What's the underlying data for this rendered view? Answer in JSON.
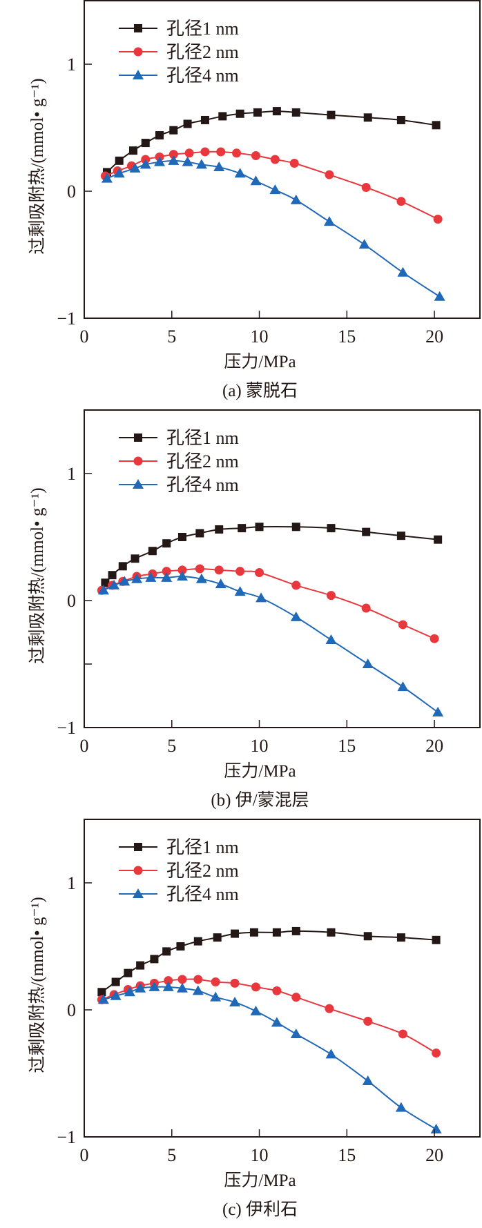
{
  "chart_data": [
    {
      "type": "line",
      "title": "(a) 蒙脱石",
      "xlabel": "压力/MPa",
      "ylabel": "过剩吸附热/(mmol• g⁻¹)",
      "xlim": [
        0,
        22.6
      ],
      "ylim": [
        -1,
        1.5
      ],
      "xticks": [
        0,
        5,
        10,
        15,
        20
      ],
      "yticks": [
        -1,
        0,
        1
      ],
      "ytick_labels": [
        "−1",
        "0",
        "1"
      ],
      "xtick_labels": [
        "0",
        "5",
        "10",
        "15",
        "20"
      ],
      "legend_position": "top-left",
      "series": [
        {
          "name": "孔径1 nm",
          "color": "#231815",
          "marker": "square",
          "x": [
            1.3,
            2.0,
            2.8,
            3.5,
            4.3,
            5.1,
            5.9,
            6.9,
            7.9,
            8.9,
            9.9,
            11.0,
            12.1,
            14.1,
            16.2,
            18.1,
            20.1
          ],
          "y": [
            0.15,
            0.24,
            0.32,
            0.38,
            0.44,
            0.48,
            0.53,
            0.56,
            0.59,
            0.61,
            0.62,
            0.63,
            0.62,
            0.6,
            0.58,
            0.56,
            0.52
          ]
        },
        {
          "name": "孔径2 nm",
          "color": "#e8383d",
          "marker": "circle",
          "x": [
            1.2,
            1.9,
            2.7,
            3.5,
            4.3,
            5.1,
            6.0,
            6.9,
            7.8,
            8.7,
            9.8,
            10.9,
            12.0,
            14.0,
            16.1,
            18.1,
            20.2
          ],
          "y": [
            0.12,
            0.16,
            0.2,
            0.25,
            0.27,
            0.29,
            0.3,
            0.31,
            0.31,
            0.3,
            0.28,
            0.25,
            0.22,
            0.13,
            0.03,
            -0.08,
            -0.22
          ]
        },
        {
          "name": "孔径4 nm",
          "color": "#2068b8",
          "marker": "triangle",
          "x": [
            1.3,
            2.0,
            2.9,
            3.5,
            4.3,
            5.1,
            5.9,
            6.7,
            7.7,
            8.9,
            9.8,
            10.9,
            12.1,
            14.0,
            16.0,
            18.2,
            20.3
          ],
          "y": [
            0.1,
            0.14,
            0.18,
            0.21,
            0.23,
            0.24,
            0.23,
            0.21,
            0.19,
            0.14,
            0.08,
            0.01,
            -0.07,
            -0.24,
            -0.42,
            -0.64,
            -0.83
          ]
        }
      ]
    },
    {
      "type": "line",
      "title": "(b) 伊/蒙混层",
      "xlabel": "压力/MPa",
      "ylabel": "过剩吸附热/(mmol• g⁻¹)",
      "xlim": [
        0,
        22.6
      ],
      "ylim": [
        -1,
        1.5
      ],
      "xticks": [
        0,
        5,
        10,
        15,
        20
      ],
      "yticks": [
        -1,
        -0.5,
        0,
        1
      ],
      "ytick_labels": [
        "−1",
        "",
        "0",
        "1"
      ],
      "xtick_labels": [
        "0",
        "5",
        "10",
        "15",
        "20"
      ],
      "legend_position": "top-left",
      "series": [
        {
          "name": "孔径1 nm",
          "color": "#231815",
          "marker": "square",
          "x": [
            1.2,
            1.6,
            2.2,
            2.9,
            3.9,
            4.7,
            5.6,
            6.6,
            7.7,
            9.0,
            10.0,
            12.1,
            14.1,
            16.1,
            18.1,
            20.2
          ],
          "y": [
            0.14,
            0.2,
            0.27,
            0.33,
            0.39,
            0.45,
            0.5,
            0.53,
            0.56,
            0.57,
            0.58,
            0.58,
            0.57,
            0.54,
            0.51,
            0.48
          ]
        },
        {
          "name": "孔径2 nm",
          "color": "#e8383d",
          "marker": "circle",
          "x": [
            1.0,
            1.6,
            2.2,
            3.0,
            3.9,
            4.7,
            5.6,
            6.6,
            7.7,
            8.9,
            10.0,
            12.1,
            14.1,
            16.1,
            18.2,
            20.0
          ],
          "y": [
            0.08,
            0.12,
            0.15,
            0.19,
            0.21,
            0.23,
            0.24,
            0.25,
            0.24,
            0.23,
            0.22,
            0.12,
            0.04,
            -0.06,
            -0.19,
            -0.3
          ]
        },
        {
          "name": "孔径4 nm",
          "color": "#2068b8",
          "marker": "triangle",
          "x": [
            1.1,
            1.7,
            2.3,
            3.0,
            3.8,
            4.7,
            5.6,
            6.7,
            7.8,
            8.9,
            10.1,
            12.1,
            14.1,
            16.2,
            18.2,
            20.2
          ],
          "y": [
            0.08,
            0.12,
            0.15,
            0.17,
            0.18,
            0.18,
            0.19,
            0.17,
            0.13,
            0.07,
            0.02,
            -0.13,
            -0.31,
            -0.5,
            -0.68,
            -0.88
          ]
        }
      ]
    },
    {
      "type": "line",
      "title": "(c) 伊利石",
      "xlabel": "压力/MPa",
      "ylabel": "过剩吸附热/(mmol• g⁻¹)",
      "xlim": [
        0,
        22.6
      ],
      "ylim": [
        -1,
        1.5
      ],
      "xticks": [
        0,
        5,
        10,
        15,
        20
      ],
      "yticks": [
        -1,
        0,
        1
      ],
      "ytick_labels": [
        "−1",
        "0",
        "1"
      ],
      "xtick_labels": [
        "0",
        "5",
        "10",
        "15",
        "20"
      ],
      "legend_position": "top-left",
      "series": [
        {
          "name": "孔径1 nm",
          "color": "#231815",
          "marker": "square",
          "x": [
            1.0,
            1.8,
            2.5,
            3.2,
            4.0,
            4.7,
            5.5,
            6.5,
            7.6,
            8.6,
            9.7,
            11.0,
            12.1,
            14.1,
            16.2,
            18.1,
            20.1
          ],
          "y": [
            0.14,
            0.22,
            0.29,
            0.35,
            0.4,
            0.46,
            0.5,
            0.54,
            0.57,
            0.6,
            0.61,
            0.61,
            0.62,
            0.61,
            0.58,
            0.57,
            0.55
          ]
        },
        {
          "name": "孔径2 nm",
          "color": "#e8383d",
          "marker": "circle",
          "x": [
            1.0,
            1.7,
            2.5,
            3.2,
            4.0,
            4.8,
            5.6,
            6.5,
            7.5,
            8.6,
            9.8,
            11.0,
            12.1,
            14.0,
            16.2,
            18.2,
            20.1
          ],
          "y": [
            0.08,
            0.12,
            0.16,
            0.19,
            0.21,
            0.23,
            0.24,
            0.24,
            0.22,
            0.21,
            0.18,
            0.15,
            0.1,
            0.01,
            -0.09,
            -0.19,
            -0.34
          ]
        },
        {
          "name": "孔径4 nm",
          "color": "#2068b8",
          "marker": "triangle",
          "x": [
            1.1,
            1.8,
            2.6,
            3.2,
            4.0,
            4.8,
            5.6,
            6.5,
            7.5,
            8.6,
            9.8,
            11.0,
            12.1,
            14.1,
            16.2,
            18.1,
            20.1
          ],
          "y": [
            0.08,
            0.11,
            0.14,
            0.17,
            0.18,
            0.18,
            0.17,
            0.15,
            0.1,
            0.06,
            -0.01,
            -0.1,
            -0.19,
            -0.35,
            -0.56,
            -0.77,
            -0.94
          ]
        }
      ]
    }
  ]
}
